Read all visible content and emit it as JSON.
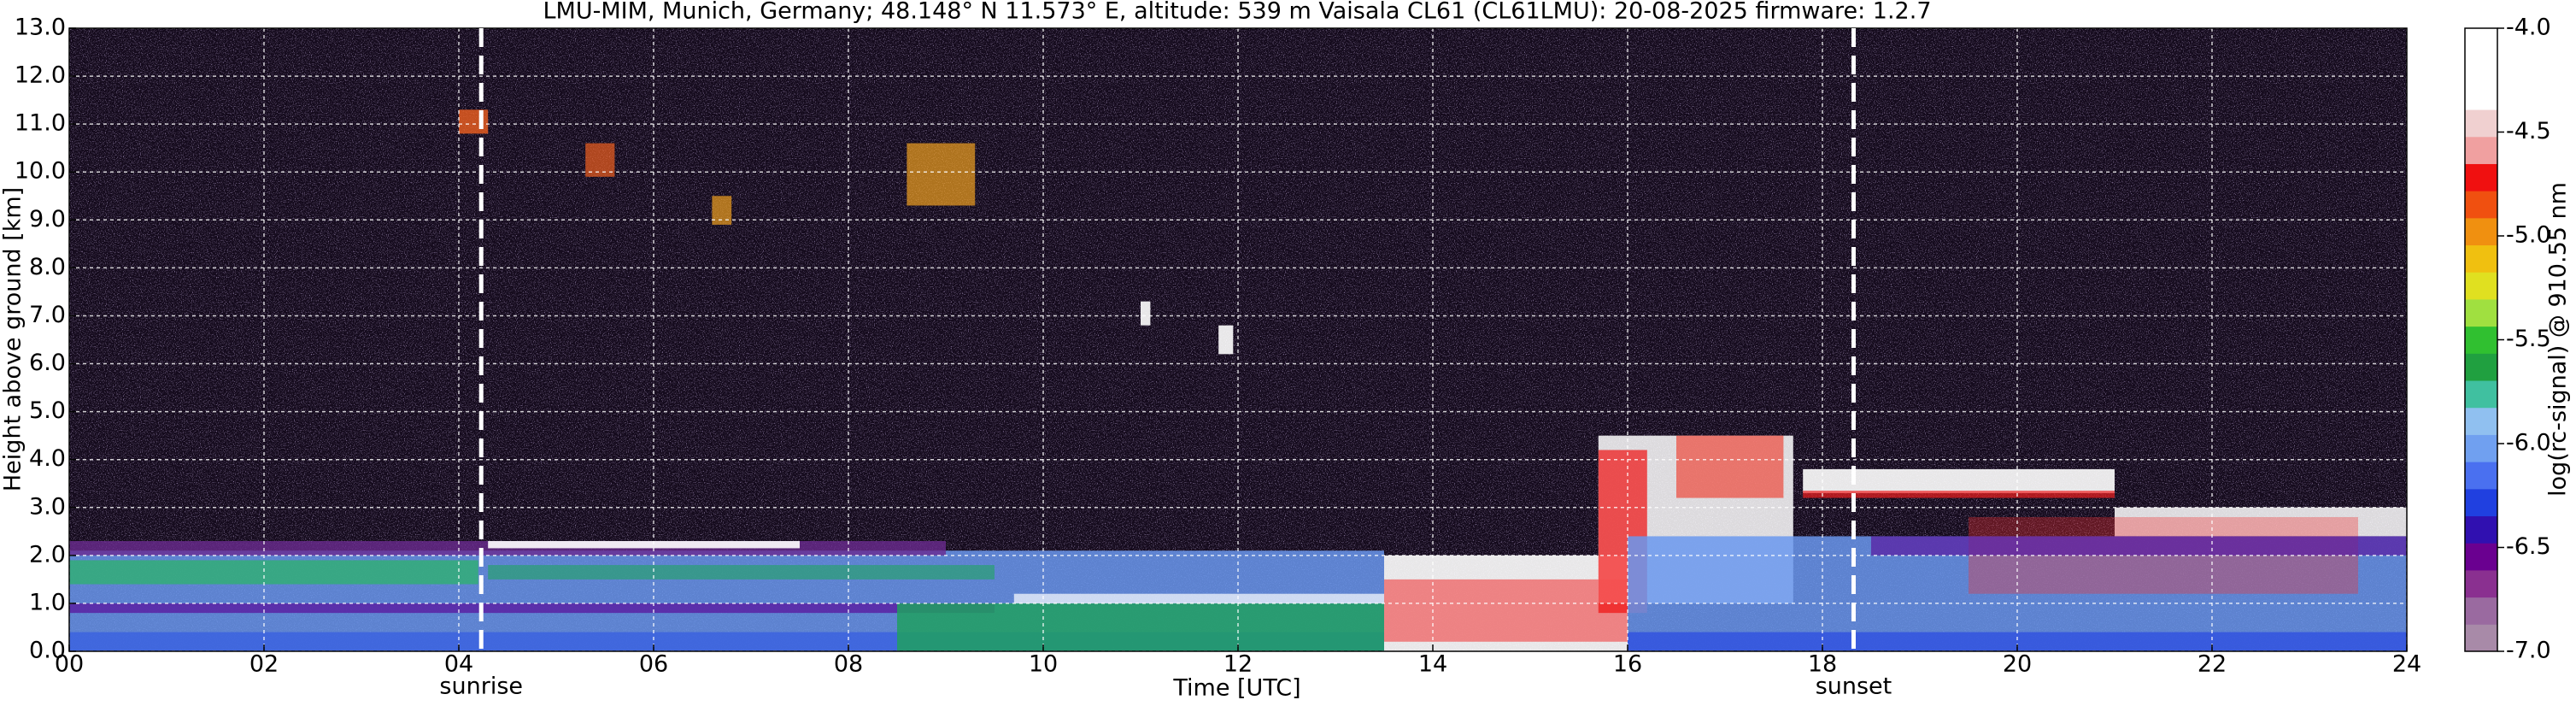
{
  "chart_data": {
    "type": "heatmap",
    "title": "LMU-MIM, Munich, Germany; 48.148° N 11.573° E, altitude: 539 m    Vaisala CL61 (CL61LMU): 20-08-2025    firmware: 1.2.7",
    "x_label": "Time [UTC]",
    "y_label": "Height above ground [km]",
    "colorbar_label": "log(rc-signal) @ 910.55 nm",
    "xlim": [
      0,
      24
    ],
    "xticks": [
      {
        "value": 0,
        "label": "00"
      },
      {
        "value": 2,
        "label": "02"
      },
      {
        "value": 4,
        "label": "04"
      },
      {
        "value": 6,
        "label": "06"
      },
      {
        "value": 8,
        "label": "08"
      },
      10,
      12,
      14,
      16,
      18,
      20,
      22,
      24
    ],
    "ylim": [
      0,
      13
    ],
    "yticks": [
      {
        "value": 0,
        "label": "0.0"
      },
      {
        "value": 1,
        "label": "1.0"
      },
      {
        "value": 2,
        "label": "2.0"
      },
      {
        "value": 3,
        "label": "3.0"
      },
      {
        "value": 4,
        "label": "4.0"
      },
      {
        "value": 5,
        "label": "5.0"
      },
      {
        "value": 6,
        "label": "6.0"
      },
      {
        "value": 7,
        "label": "7.0"
      },
      {
        "value": 8,
        "label": "8.0"
      },
      {
        "value": 9,
        "label": "9.0"
      },
      {
        "value": 10,
        "label": "10.0"
      },
      {
        "value": 11,
        "label": "11.0"
      },
      {
        "value": 12,
        "label": "12.0"
      },
      {
        "value": 13,
        "label": "13.0"
      }
    ],
    "clim": [
      -7.0,
      -4.0
    ],
    "cticks": [
      {
        "value": -4.0,
        "label": "-4.0"
      },
      {
        "value": -4.5,
        "label": "-4.5"
      },
      {
        "value": -5.0,
        "label": "-5.0"
      },
      {
        "value": -5.5,
        "label": "-5.5"
      },
      {
        "value": -6.0,
        "label": "-6.0"
      },
      {
        "value": -6.5,
        "label": "-6.5"
      },
      {
        "value": -7.0,
        "label": "-7.0"
      }
    ],
    "colormap": [
      "#a88aa8",
      "#9a6aa0",
      "#8a3090",
      "#6a0090",
      "#3010b0",
      "#2040e0",
      "#4a70f0",
      "#70a0f0",
      "#90c0f0",
      "#40c0a0",
      "#20a040",
      "#30c030",
      "#a0e040",
      "#e0e020",
      "#f0c010",
      "#f09010",
      "#f05010",
      "#f01010",
      "#f0a0a0",
      "#f0d0d0",
      "#ffffff",
      "#ffffff",
      "#ffffff"
    ],
    "grid": true,
    "annotations": [
      {
        "label": "sunrise",
        "x": 4.23
      },
      {
        "label": "sunset",
        "x": 18.32
      }
    ]
  }
}
